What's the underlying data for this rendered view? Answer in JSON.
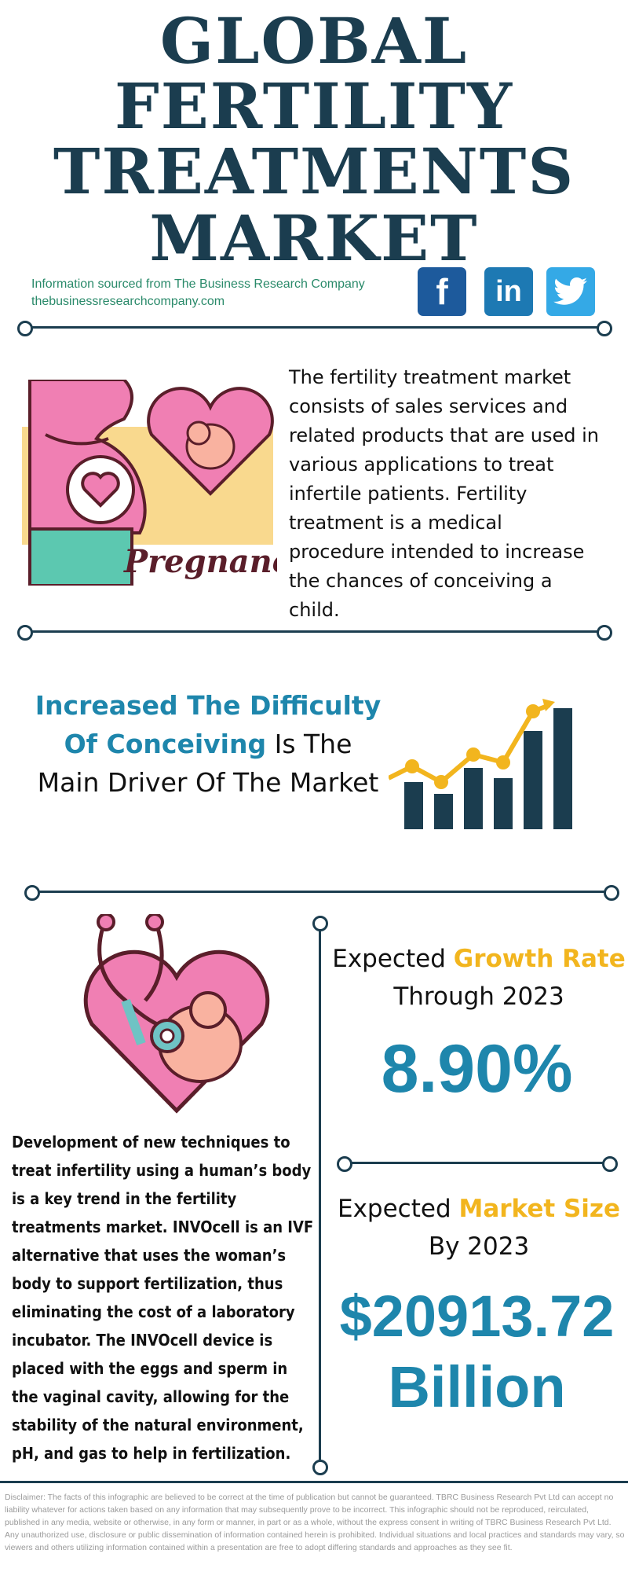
{
  "title_lines": [
    "GLOBAL",
    "FERTILITY",
    "TREATMENTS",
    "MARKET"
  ],
  "source": {
    "line1": "Information sourced from The Business Research Company",
    "line2": "thebusinessresearchcompany.com"
  },
  "social": [
    {
      "name": "facebook-icon",
      "glyph": "f",
      "color": "#1d5a9c"
    },
    {
      "name": "linkedin-icon",
      "glyph": "in",
      "color": "#1d79b3"
    },
    {
      "name": "twitter-icon",
      "glyph": "🐦",
      "color": "#34a9e6"
    }
  ],
  "pregnancy_label": "Pregnancy",
  "description": "The fertility treatment market consists of sales services and related products that are used in various applications to treat infertile patients. Fertility treatment is a medical procedure intended to increase the chances of conceiving a child.",
  "driver": {
    "highlight": "Increased The Difficulty Of Conceiving",
    "rest": " Is The Main Driver Of The Market"
  },
  "trend_text": "Development of new techniques to treat infertility using a human’s body is a key trend in the fertility treatments market. INVOcell is an IVF alternative that uses the woman’s body to support fertilization, thus eliminating the cost of a laboratory incubator. The INVOcell device is placed with the eggs and sperm in the vaginal cavity, allowing for the stability of the natural environment, pH, and gas to help in fertilization.",
  "growth": {
    "prefix": "Expected ",
    "highlight": "Growth Rate",
    "line2": "Through 2023",
    "value": "8.90%"
  },
  "market_size": {
    "prefix": "Expected ",
    "highlight": "Market Size",
    "line2": "By 2023",
    "value": "$20913.72",
    "unit": "Billion"
  },
  "disclaimer": "Disclaimer: The facts of this infographic are believed to be correct at the time of publication but cannot be guaranteed. TBRC Business Research Pvt Ltd can accept no liability whatever for actions taken based on any information that may subsequently prove to be incorrect. This infographic should not be reproduced, reirculated, published in any media, website or otherwise, in any form or manner, in part or as a whole, without the express consent in writing of TBRC Business Research Pvt Ltd. Any unauthorized use, disclosure or public dissemination of information contained herein is prohibited. Individual situations and local practices and standards may vary, so viewers and others utilizing information contained within a presentation are free to adopt differing standards and approaches as they see fit.",
  "colors": {
    "navy": "#1b3d4f",
    "blue": "#1e86ac",
    "yellow": "#f2b51e",
    "green": "#2a8a6a"
  }
}
